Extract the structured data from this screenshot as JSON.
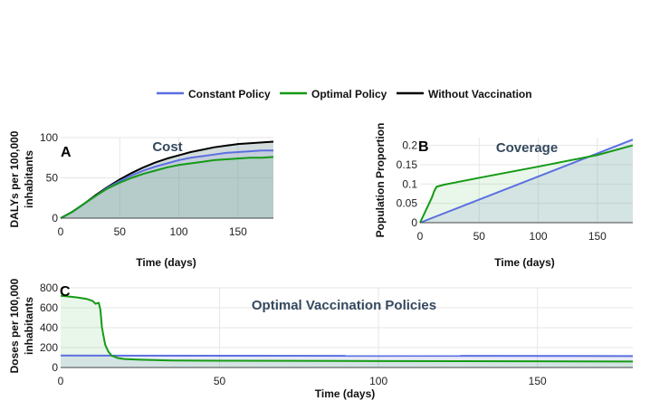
{
  "legend": [
    {
      "name": "Constant Policy",
      "color": "#5b6fe0"
    },
    {
      "name": "Optimal Policy",
      "color": "#159a15"
    },
    {
      "name": "Without Vaccination",
      "color": "#000000"
    }
  ],
  "chart_data": [
    {
      "id": "A",
      "type": "area",
      "panel_label": "A",
      "title": "Cost",
      "xlabel": "Time (days)",
      "ylabel": "DALYs per 100,000 inhabitants",
      "xlim": [
        0,
        180
      ],
      "ylim": [
        0,
        100
      ],
      "xticks": [
        0,
        50,
        100,
        150
      ],
      "yticks": [
        0,
        50,
        100
      ],
      "grid": true,
      "x": [
        0,
        10,
        20,
        30,
        40,
        50,
        60,
        70,
        80,
        90,
        100,
        110,
        120,
        130,
        140,
        150,
        160,
        170,
        180
      ],
      "series": [
        {
          "name": "Without Vaccination",
          "color": "#000000",
          "values": [
            0,
            8,
            18,
            29,
            39,
            48,
            56,
            63,
            69,
            74,
            78,
            82,
            85,
            88,
            90,
            92,
            93,
            94,
            95
          ]
        },
        {
          "name": "Constant Policy",
          "color": "#5b6fe0",
          "values": [
            0,
            8,
            18,
            28,
            38,
            46,
            53,
            59,
            64,
            68,
            72,
            75,
            77,
            79,
            81,
            82,
            83,
            84,
            84
          ]
        },
        {
          "name": "Optimal Policy",
          "color": "#159a15",
          "values": [
            0,
            8,
            18,
            28,
            37,
            44,
            50,
            55,
            59,
            63,
            66,
            68,
            70,
            72,
            73,
            74,
            75,
            75,
            76
          ]
        }
      ]
    },
    {
      "id": "B",
      "type": "area",
      "panel_label": "B",
      "title": "Coverage",
      "xlabel": "Time (days)",
      "ylabel": "Population Proportion",
      "xlim": [
        0,
        180
      ],
      "ylim": [
        0,
        0.22
      ],
      "xticks": [
        0,
        50,
        100,
        150
      ],
      "yticks": [
        0,
        0.05,
        0.1,
        0.15,
        0.2
      ],
      "ytick_labels": [
        "0",
        "0.05",
        "0.1",
        "0.15",
        "0.2"
      ],
      "grid": true,
      "x": [
        0,
        10,
        12,
        14,
        20,
        30,
        50,
        100,
        150,
        180
      ],
      "series": [
        {
          "name": "Constant Policy",
          "color": "#5b6fe0",
          "x": [
            0,
            180
          ],
          "values": [
            0,
            0.215
          ]
        },
        {
          "name": "Optimal Policy",
          "color": "#159a15",
          "x": [
            0,
            10,
            12,
            14,
            20,
            30,
            50,
            100,
            150,
            180
          ],
          "values": [
            0,
            0.065,
            0.082,
            0.093,
            0.098,
            0.104,
            0.116,
            0.145,
            0.175,
            0.2
          ]
        }
      ]
    },
    {
      "id": "C",
      "type": "area",
      "panel_label": "C",
      "title": "Optimal Vaccination Policies",
      "xlabel": "Time (days)",
      "ylabel": "Doses per 100,000 inhabitants",
      "xlim": [
        0,
        180
      ],
      "ylim": [
        0,
        800
      ],
      "xticks": [
        0,
        50,
        100,
        150
      ],
      "yticks": [
        0,
        200,
        400,
        600,
        800
      ],
      "grid": true,
      "series": [
        {
          "name": "Constant Policy",
          "color": "#5b6fe0",
          "x": [
            0,
            180
          ],
          "values": [
            120,
            115
          ]
        },
        {
          "name": "Optimal Policy",
          "color": "#159a15",
          "x": [
            0,
            2,
            5,
            8,
            10,
            11,
            12,
            12.5,
            13,
            14,
            15,
            16,
            18,
            20,
            25,
            35,
            50,
            100,
            150,
            180
          ],
          "values": [
            720,
            715,
            705,
            690,
            670,
            640,
            650,
            580,
            400,
            230,
            160,
            120,
            95,
            85,
            78,
            70,
            68,
            65,
            62,
            60
          ]
        }
      ]
    }
  ]
}
